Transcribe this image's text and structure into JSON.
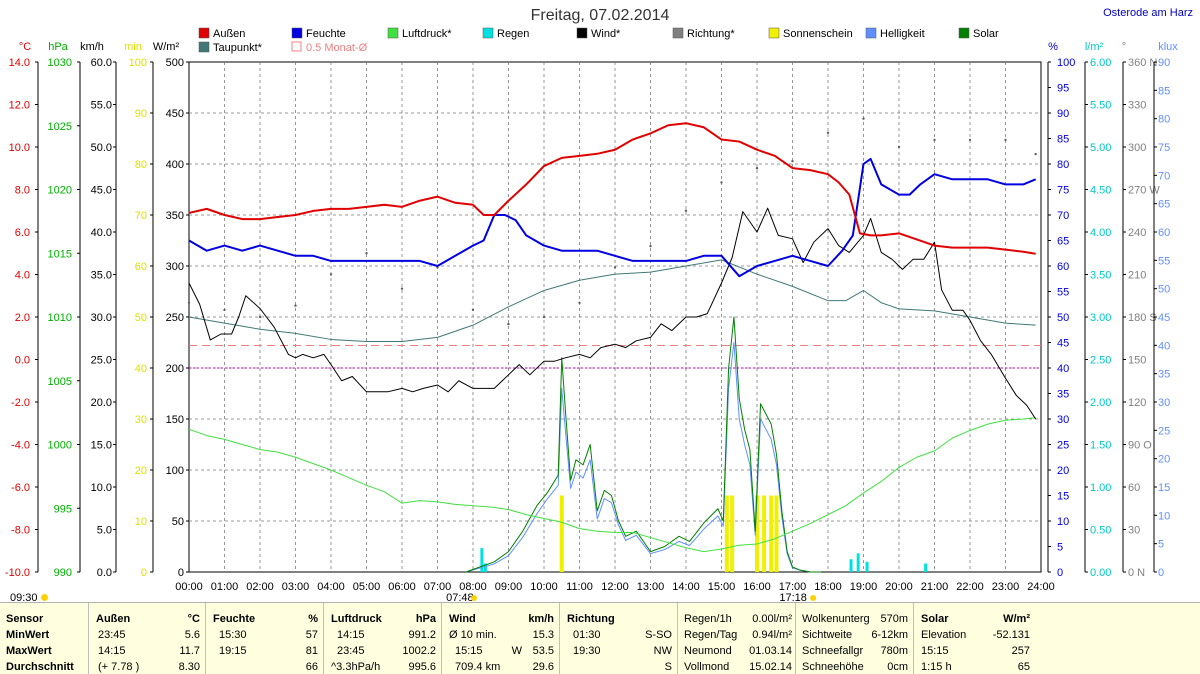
{
  "chart_data": {
    "type": "line",
    "title": "Freitag, 07.02.2014",
    "location": "Osterode am Harz",
    "legend": [
      {
        "name": "Außen",
        "color": "#e00000"
      },
      {
        "name": "Feuchte",
        "color": "#0000e0"
      },
      {
        "name": "Luftdruck*",
        "color": "#40e040"
      },
      {
        "name": "Regen",
        "color": "#00e0e0"
      },
      {
        "name": "Wind*",
        "color": "#000000"
      },
      {
        "name": "Richtung*",
        "color": "#808080"
      },
      {
        "name": "Sonnenschein",
        "color": "#f0f000"
      },
      {
        "name": "Helligkeit",
        "color": "#6090ff"
      },
      {
        "name": "Solar",
        "color": "#008000"
      },
      {
        "name": "Taupunkt*",
        "color": "#407878"
      },
      {
        "name": "0.5 Monat-Ø",
        "color": "#f08080"
      }
    ],
    "x_ticks": [
      "00:00",
      "01:00",
      "02:00",
      "03:00",
      "04:00",
      "05:00",
      "06:00",
      "07:00",
      "08:00",
      "09:00",
      "10:00",
      "11:00",
      "12:00",
      "13:00",
      "14:00",
      "15:00",
      "16:00",
      "17:00",
      "18:00",
      "19:00",
      "20:00",
      "21:00",
      "22:00",
      "23:00",
      "24:00"
    ],
    "x_range": [
      0,
      24
    ],
    "sunrise_label": "07:48",
    "sunset_label": "17:18",
    "sun_label_left": "09:30",
    "left_axes": [
      {
        "unit": "°C",
        "color": "#e00000",
        "ticks": [
          "14.0",
          "12.0",
          "10.0",
          "8.0",
          "6.0",
          "4.0",
          "2.0",
          "0.0",
          "-2.0",
          "-4.0",
          "-6.0",
          "-8.0",
          "-10.0"
        ]
      },
      {
        "unit": "hPa",
        "color": "#00b000",
        "ticks": [
          "1030",
          "1025",
          "1020",
          "1015",
          "1010",
          "1005",
          "1000",
          "995",
          "990"
        ]
      },
      {
        "unit": "km/h",
        "color": "#000000",
        "ticks": [
          "60.0",
          "55.0",
          "50.0",
          "45.0",
          "40.0",
          "35.0",
          "30.0",
          "25.0",
          "20.0",
          "15.0",
          "10.0",
          "5.0",
          "0.0"
        ]
      },
      {
        "unit": "min",
        "color": "#e0e000",
        "ticks": [
          "100",
          "90",
          "80",
          "70",
          "60",
          "50",
          "40",
          "30",
          "20",
          "10",
          "0"
        ]
      },
      {
        "unit": "W/m²",
        "color": "#000000",
        "ticks": [
          "500",
          "450",
          "400",
          "350",
          "300",
          "250",
          "200",
          "150",
          "100",
          "50",
          "0"
        ]
      }
    ],
    "right_axes": [
      {
        "unit": "%",
        "color": "#0000e0",
        "ticks": [
          "100",
          "95",
          "90",
          "85",
          "80",
          "75",
          "70",
          "65",
          "60",
          "55",
          "50",
          "45",
          "40",
          "35",
          "30",
          "25",
          "20",
          "15",
          "10",
          "5",
          "0"
        ]
      },
      {
        "unit": "l/m²",
        "color": "#00c8c8",
        "ticks": [
          "6.00",
          "5.50",
          "5.00",
          "4.50",
          "4.00",
          "3.50",
          "3.00",
          "2.50",
          "2.00",
          "1.50",
          "1.00",
          "0.50",
          "0.00"
        ]
      },
      {
        "unit": "°",
        "color": "#808080",
        "ticks": [
          "360 N",
          "330",
          "300",
          "270 W",
          "240",
          "210",
          "180 S",
          "150",
          "120",
          "90 O",
          "60",
          "30",
          "0 N"
        ]
      },
      {
        "unit": "klux",
        "color": "#6090ff",
        "ticks": [
          "90",
          "85",
          "80",
          "75",
          "70",
          "65",
          "60",
          "55",
          "50",
          "45",
          "40",
          "35",
          "30",
          "25",
          "20",
          "15",
          "10",
          "5",
          "0"
        ]
      }
    ],
    "series": {
      "aussen_c": {
        "x": [
          0,
          0.5,
          1,
          1.5,
          2,
          2.5,
          3,
          3.5,
          4,
          4.5,
          5,
          5.5,
          6,
          6.5,
          7,
          7.5,
          8,
          8.3,
          8.6,
          9,
          9.5,
          10,
          10.5,
          11,
          11.5,
          12,
          12.5,
          13,
          13.5,
          14,
          14.5,
          15,
          15.5,
          16,
          16.5,
          17,
          17.5,
          18,
          18.3,
          18.6,
          18.9,
          19.2,
          19.5,
          20,
          20.5,
          21,
          21.5,
          22,
          22.5,
          23,
          23.5,
          23.85
        ],
        "y": [
          7.6,
          7.8,
          7.5,
          7.3,
          7.3,
          7.4,
          7.5,
          7.7,
          7.8,
          7.8,
          7.9,
          8.0,
          7.9,
          8.2,
          8.4,
          8.1,
          8.0,
          7.5,
          7.5,
          8.2,
          9.0,
          9.9,
          10.3,
          10.4,
          10.5,
          10.7,
          11.2,
          11.5,
          11.9,
          12.0,
          11.8,
          11.2,
          11.1,
          10.7,
          10.4,
          9.8,
          9.7,
          9.5,
          9.1,
          8.5,
          6.6,
          6.5,
          6.5,
          6.6,
          6.3,
          6.0,
          5.9,
          5.9,
          5.9,
          5.8,
          5.7,
          5.6
        ]
      },
      "feuchte_pct": {
        "x": [
          0,
          0.5,
          1,
          1.5,
          2,
          2.5,
          3,
          3.5,
          4,
          4.5,
          5,
          5.5,
          6,
          6.5,
          7,
          7.5,
          8,
          8.3,
          8.6,
          8.9,
          9.2,
          9.5,
          10,
          10.5,
          11,
          11.5,
          12,
          12.5,
          13,
          13.5,
          14,
          14.5,
          15,
          15.5,
          16,
          16.5,
          17,
          17.5,
          18,
          18.4,
          18.7,
          19,
          19.2,
          19.5,
          20,
          20.3,
          20.6,
          21,
          21.5,
          22,
          22.5,
          23,
          23.5,
          23.85
        ],
        "y": [
          65,
          63,
          64,
          63,
          64,
          63,
          62,
          62,
          61,
          61,
          61,
          61,
          61,
          61,
          60,
          62,
          64,
          65,
          70,
          70,
          69,
          66,
          64,
          63,
          63,
          63,
          62,
          61,
          61,
          61,
          61,
          62,
          62,
          58,
          60,
          61,
          62,
          61,
          60,
          63,
          66,
          80,
          81,
          76,
          74,
          74,
          76,
          78,
          77,
          77,
          77,
          76,
          76,
          77
        ]
      },
      "luftdruck_hpa": {
        "x": [
          0,
          0.5,
          1,
          1.5,
          2,
          2.5,
          3,
          3.5,
          4,
          4.5,
          5,
          5.5,
          6,
          6.5,
          7,
          7.5,
          8,
          8.5,
          9,
          9.5,
          10,
          10.5,
          11,
          11.5,
          12,
          12.5,
          13,
          13.5,
          14,
          14.5,
          15,
          15.5,
          16,
          16.5,
          17,
          17.5,
          18,
          18.5,
          19,
          19.5,
          20,
          20.5,
          21,
          21.5,
          22,
          22.5,
          23,
          23.5,
          23.85
        ],
        "y": [
          1001.2,
          1000.7,
          1000.4,
          1000.0,
          999.6,
          999.4,
          999.0,
          998.5,
          998.0,
          997.4,
          996.8,
          996.3,
          995.4,
          995.6,
          995.5,
          995.3,
          995.2,
          995.1,
          994.9,
          994.5,
          994.2,
          993.9,
          993.4,
          993.2,
          993.1,
          993.1,
          992.7,
          992.3,
          991.9,
          991.6,
          991.8,
          992.1,
          992.2,
          992.6,
          993.2,
          993.8,
          994.5,
          995.2,
          996.2,
          997.1,
          998.2,
          999.0,
          999.5,
          1000.5,
          1001.1,
          1001.6,
          1001.9,
          1002.0,
          1002.1
        ]
      },
      "taupunkt_c": {
        "x": [
          0,
          1,
          2,
          3,
          4,
          5,
          6,
          7,
          8,
          9,
          10,
          11,
          12,
          13,
          14,
          15,
          16,
          17,
          18,
          18.5,
          19,
          19.5,
          20,
          21,
          22,
          23,
          23.85
        ],
        "y": [
          2.5,
          2.2,
          1.9,
          1.7,
          1.4,
          1.3,
          1.3,
          1.5,
          2.1,
          3.0,
          3.8,
          4.3,
          4.6,
          4.7,
          5.0,
          5.3,
          4.6,
          4.0,
          3.3,
          3.3,
          3.8,
          3.2,
          2.9,
          2.8,
          2.5,
          2.2,
          2.1
        ]
      },
      "wind_kmh": {
        "x": [
          0,
          0.3,
          0.6,
          0.9,
          1.2,
          1.4,
          1.6,
          2,
          2.4,
          2.8,
          3.0,
          3.2,
          3.5,
          3.8,
          4.0,
          4.3,
          4.6,
          5.0,
          5.3,
          5.6,
          6.0,
          6.3,
          6.6,
          7.0,
          7.3,
          7.6,
          8.0,
          8.3,
          8.6,
          9.0,
          9.3,
          9.6,
          10.0,
          10.3,
          10.6,
          11.0,
          11.3,
          11.6,
          12.0,
          12.3,
          12.6,
          13.0,
          13.3,
          13.6,
          14.0,
          14.3,
          14.6,
          15.0,
          15.3,
          15.6,
          16.0,
          16.3,
          16.6,
          17.0,
          17.3,
          17.6,
          18.0,
          18.3,
          18.6,
          19.0,
          19.2,
          19.5,
          19.8,
          20.1,
          20.4,
          20.7,
          21.0,
          21.2,
          21.5,
          21.8,
          22.0,
          22.3,
          22.6,
          23.0,
          23.3,
          23.6,
          23.85
        ],
        "y": [
          34,
          31.5,
          27.3,
          28,
          28,
          30,
          32.5,
          31,
          28.8,
          25.6,
          25.2,
          25.6,
          25.2,
          25.6,
          24.4,
          22.5,
          23,
          21.2,
          21.2,
          21.2,
          21.6,
          21.2,
          21.6,
          22,
          21.2,
          22.5,
          21.6,
          21.6,
          21.6,
          23.2,
          24.4,
          23.2,
          24.8,
          24.8,
          25.2,
          25.6,
          25.2,
          26.4,
          26.8,
          26.4,
          27.2,
          27.6,
          29.2,
          28.4,
          30,
          30,
          30.4,
          34,
          37,
          42.4,
          40,
          42.8,
          39.6,
          39.2,
          36.4,
          38.8,
          40.4,
          38.4,
          37.6,
          39.6,
          41.6,
          37.6,
          36.8,
          35.6,
          36.8,
          36.8,
          38.8,
          33.2,
          30.8,
          30.8,
          29.6,
          27.2,
          25.6,
          22.8,
          20.8,
          19.6,
          18
        ]
      },
      "richtung_deg": {
        "x": [
          0,
          1,
          2,
          3,
          4,
          5,
          6,
          7,
          8,
          9,
          10,
          11,
          12,
          13,
          14,
          15,
          16,
          17,
          18,
          19,
          20,
          21,
          22,
          23,
          23.85
        ],
        "y": [
          190,
          185,
          180,
          188,
          210,
          225,
          200,
          215,
          185,
          175,
          180,
          190,
          215,
          230,
          255,
          275,
          285,
          290,
          310,
          320,
          300,
          305,
          305,
          305,
          295
        ]
      },
      "solar_wm2": {
        "x": [
          7.8,
          8.2,
          8.6,
          9.0,
          9.4,
          9.8,
          10.1,
          10.4,
          10.5,
          10.6,
          10.75,
          10.9,
          11.1,
          11.3,
          11.5,
          11.7,
          11.9,
          12.1,
          12.3,
          12.6,
          13.0,
          13.4,
          13.8,
          14.1,
          14.5,
          14.9,
          15.05,
          15.2,
          15.35,
          15.5,
          15.65,
          15.8,
          15.95,
          16.1,
          16.25,
          16.4,
          16.55,
          16.7,
          16.85,
          17.0,
          17.2,
          17.5,
          17.8
        ],
        "y": [
          0,
          5,
          10,
          20,
          40,
          65,
          78,
          95,
          210,
          160,
          90,
          110,
          105,
          125,
          60,
          80,
          75,
          50,
          35,
          40,
          20,
          25,
          35,
          30,
          48,
          62,
          50,
          200,
          250,
          170,
          140,
          120,
          40,
          165,
          155,
          145,
          115,
          60,
          20,
          5,
          2,
          0,
          0
        ]
      },
      "helligkeit_wm2": {
        "x": [
          7.8,
          8.2,
          8.6,
          9.0,
          9.4,
          9.8,
          10.1,
          10.4,
          10.5,
          10.6,
          10.75,
          10.9,
          11.1,
          11.3,
          11.5,
          11.7,
          11.9,
          12.1,
          12.3,
          12.6,
          13.0,
          13.4,
          13.8,
          14.1,
          14.5,
          14.9,
          15.05,
          15.2,
          15.35,
          15.5,
          15.65,
          15.8,
          15.95,
          16.1,
          16.25,
          16.4,
          16.55,
          16.7,
          16.85,
          17.0,
          17.2,
          17.5,
          17.8
        ],
        "y": [
          0,
          4,
          8,
          16,
          34,
          57,
          72,
          85,
          180,
          140,
          82,
          98,
          92,
          110,
          52,
          72,
          68,
          46,
          31,
          36,
          18,
          22,
          30,
          26,
          42,
          55,
          45,
          180,
          225,
          150,
          125,
          105,
          36,
          150,
          140,
          130,
          105,
          54,
          18,
          4,
          2,
          0,
          0
        ]
      },
      "sonnenschein_min": {
        "x": [
          10.5,
          15.15,
          15.3,
          16.0,
          16.2,
          16.4,
          16.55
        ],
        "y": [
          15,
          15,
          15,
          15,
          15,
          15,
          15
        ]
      },
      "regen_lm2": {
        "x": [
          8.25,
          8.35,
          18.65,
          18.85,
          19.1,
          20.75
        ],
        "y": [
          0.28,
          0.1,
          0.15,
          0.22,
          0.12,
          0.1
        ]
      },
      "monthly_avg_c": 1.1
    }
  },
  "stats": {
    "sensor": {
      "label": "Sensor",
      "rows": [
        "MinWert",
        "MaxWert",
        "Durchschnitt"
      ]
    },
    "aussen": {
      "label": "Außen",
      "unit": "°C",
      "times": [
        "23:45",
        "14:15",
        "(+ 7.78 )"
      ],
      "values": [
        "5.6",
        "11.7",
        "8.30"
      ]
    },
    "feuchte": {
      "label": "Feuchte",
      "unit": "%",
      "times": [
        "15:30",
        "19:15",
        ""
      ],
      "values": [
        "57",
        "81",
        "66"
      ]
    },
    "luftdruck": {
      "label": "Luftdruck",
      "unit": "hPa",
      "times": [
        "14:15",
        "23:45",
        "^3.3hPa/h"
      ],
      "values": [
        "991.2",
        "1002.2",
        "995.6"
      ]
    },
    "wind": {
      "label": "Wind",
      "unit": "km/h",
      "times": [
        "Ø 10 min.",
        "15:15",
        "709.4 km"
      ],
      "dir": [
        "",
        "W",
        ""
      ],
      "values": [
        "15.3",
        "53.5",
        "29.6"
      ]
    },
    "richtung": {
      "label": "Richtung",
      "times": [
        "01:30",
        "19:30",
        ""
      ],
      "values": [
        "S-SO",
        "NW",
        "S"
      ]
    },
    "regen": {
      "labels": [
        "Regen/1h",
        "Regen/Tag",
        "Neumond",
        "Vollmond"
      ],
      "values": [
        "0.00l/m²",
        "0.94l/m²",
        "01.03.14",
        "15.02.14"
      ]
    },
    "wolken": {
      "labels": [
        "Wolkenunterg",
        "Sichtweite",
        "Schneefallgr",
        "Schneehöhe"
      ],
      "values": [
        "570m",
        "6-12km",
        "780m",
        "0cm"
      ]
    },
    "solar": {
      "label": "Solar",
      "unit": "W/m²",
      "labels": [
        "Elevation",
        "15:15",
        "1:15 h"
      ],
      "values": [
        "-52.131",
        "257",
        "65"
      ]
    }
  }
}
